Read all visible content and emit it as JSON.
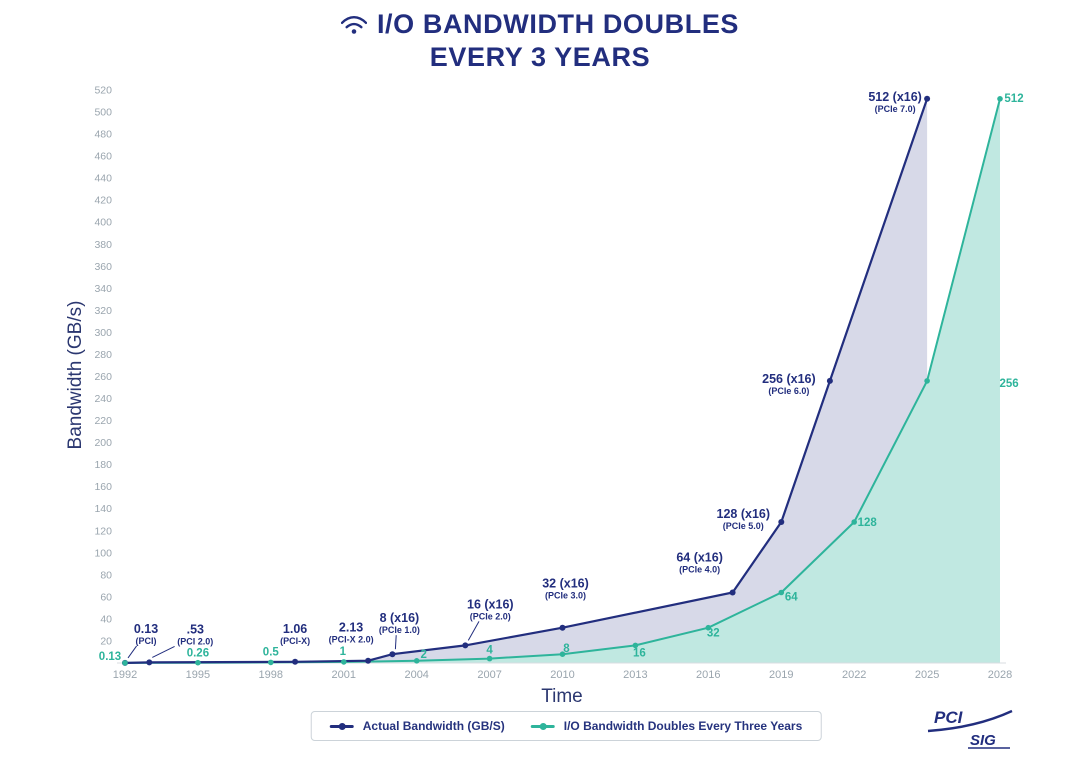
{
  "title": {
    "line1": "I/O BANDWIDTH DOUBLES",
    "line2": "EVERY 3 YEARS",
    "icon": "wifi-icon"
  },
  "colors": {
    "navy": "#222e7e",
    "teal": "#2eb49b",
    "tick": "#9aa5ae",
    "axis_line": "#d9dde1",
    "navy_fill": "rgba(34,46,126,0.18)",
    "teal_fill": "rgba(46,180,155,0.30)"
  },
  "chart_data": {
    "type": "line",
    "title": "I/O Bandwidth Doubles Every 3 Years",
    "xlabel": "Time",
    "ylabel": "Bandwidth (GB/s)",
    "xlim": [
      1992,
      2028
    ],
    "ylim": [
      0,
      520
    ],
    "x_ticks": [
      1992,
      1995,
      1998,
      2001,
      2004,
      2007,
      2010,
      2013,
      2016,
      2019,
      2022,
      2025,
      2028
    ],
    "y_ticks": [
      20,
      40,
      60,
      80,
      100,
      120,
      140,
      160,
      180,
      200,
      220,
      240,
      260,
      280,
      300,
      320,
      340,
      360,
      380,
      400,
      420,
      440,
      460,
      480,
      500,
      520
    ],
    "grid": false,
    "legend_position": "bottom-center",
    "series": [
      {
        "name": "Actual Bandwidth (GB/S)",
        "color": "#222e7e",
        "points": [
          {
            "x": 1992,
            "y": 0.13,
            "label": "0.13",
            "sub": "(PCI)"
          },
          {
            "x": 1993,
            "y": 0.53,
            "label": ".53",
            "sub": "(PCI 2.0)"
          },
          {
            "x": 1999,
            "y": 1.06,
            "label": "1.06",
            "sub": "(PCI-X)"
          },
          {
            "x": 2002,
            "y": 2.13,
            "label": "2.13",
            "sub": "(PCI-X 2.0)"
          },
          {
            "x": 2003,
            "y": 8,
            "label": "8 (x16)",
            "sub": "(PCIe 1.0)"
          },
          {
            "x": 2006,
            "y": 16,
            "label": "16 (x16)",
            "sub": "(PCIe 2.0)"
          },
          {
            "x": 2010,
            "y": 32,
            "label": "32 (x16)",
            "sub": "(PCIe 3.0)"
          },
          {
            "x": 2017,
            "y": 64,
            "label": "64 (x16)",
            "sub": "(PCIe 4.0)"
          },
          {
            "x": 2019,
            "y": 128,
            "label": "128 (x16)",
            "sub": "(PCIe 5.0)"
          },
          {
            "x": 2021,
            "y": 256,
            "label": "256 (x16)",
            "sub": "(PCIe 6.0)"
          },
          {
            "x": 2025,
            "y": 512,
            "label": "512 (x16)",
            "sub": "(PCIe 7.0)"
          }
        ]
      },
      {
        "name": "I/O Bandwidth Doubles Every Three Years",
        "color": "#2eb49b",
        "points": [
          {
            "x": 1992,
            "y": 0.13,
            "label": "0.13"
          },
          {
            "x": 1995,
            "y": 0.26,
            "label": "0.26"
          },
          {
            "x": 1998,
            "y": 0.5,
            "label": "0.5"
          },
          {
            "x": 2001,
            "y": 1,
            "label": "1"
          },
          {
            "x": 2004,
            "y": 2,
            "label": "2"
          },
          {
            "x": 2007,
            "y": 4,
            "label": "4"
          },
          {
            "x": 2010,
            "y": 8,
            "label": "8"
          },
          {
            "x": 2013,
            "y": 16,
            "label": "16"
          },
          {
            "x": 2016,
            "y": 32,
            "label": "32"
          },
          {
            "x": 2019,
            "y": 64,
            "label": "64"
          },
          {
            "x": 2022,
            "y": 128,
            "label": "128"
          },
          {
            "x": 2025,
            "y": 256,
            "label": "256"
          },
          {
            "x": 2028,
            "y": 512,
            "label": "512"
          }
        ]
      }
    ]
  },
  "logo": {
    "line1": "PCI",
    "line2": "SIG"
  }
}
